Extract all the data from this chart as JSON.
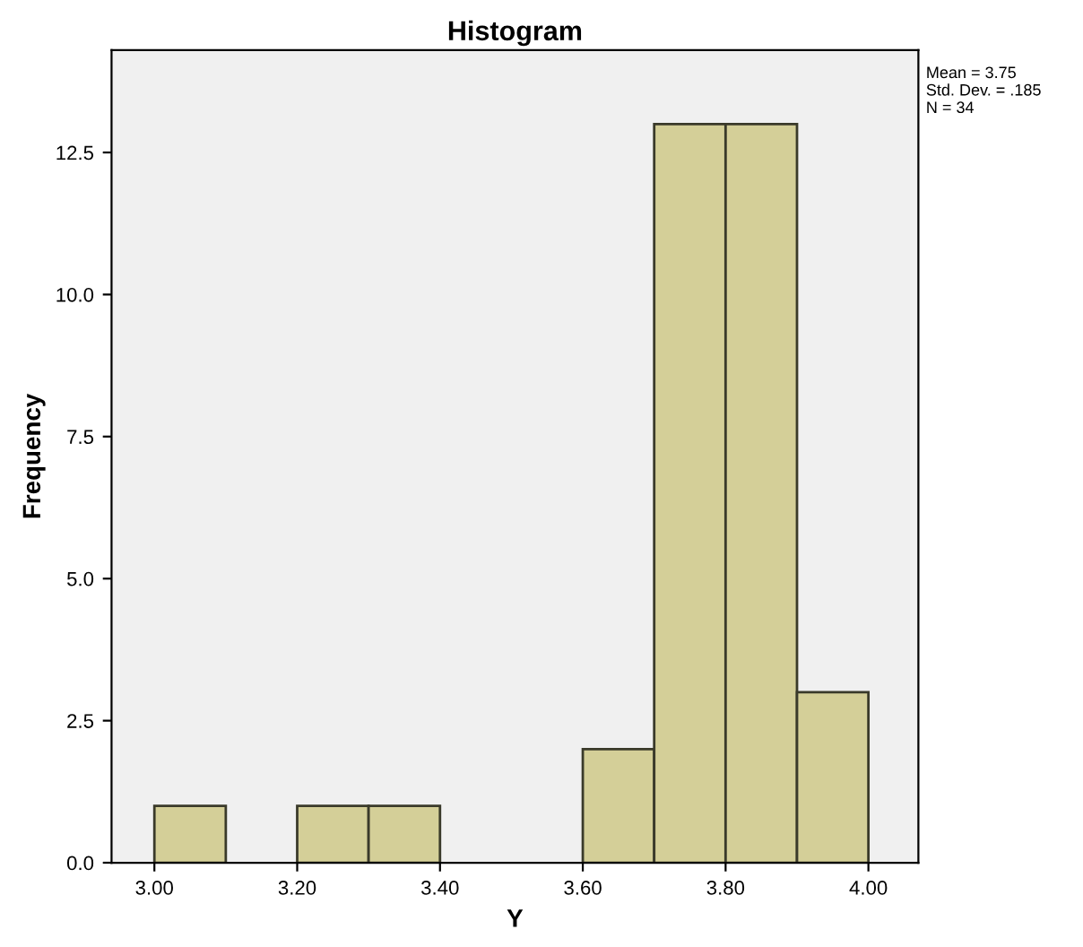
{
  "chart_data": {
    "type": "histogram",
    "title": "Histogram",
    "xlabel": "Y",
    "ylabel": "Frequency",
    "bins": [
      3.0,
      3.1,
      3.2,
      3.3,
      3.4,
      3.5,
      3.6,
      3.7,
      3.8,
      3.9,
      4.0
    ],
    "values": [
      1,
      0,
      1,
      1,
      0,
      0,
      2,
      13,
      13,
      3
    ],
    "color": "#d4cf98",
    "xlim": [
      2.94,
      4.07
    ],
    "ylim": [
      0,
      14.3
    ],
    "xticks": [
      {
        "value": 3.0,
        "label": "3.00"
      },
      {
        "value": 3.2,
        "label": "3.20"
      },
      {
        "value": 3.4,
        "label": "3.40"
      },
      {
        "value": 3.6,
        "label": "3.60"
      },
      {
        "value": 3.8,
        "label": "3.80"
      },
      {
        "value": 4.0,
        "label": "4.00"
      }
    ],
    "yticks": [
      {
        "value": 0,
        "label": "0.0"
      },
      2.5,
      {
        "value": 5,
        "label": "5.0"
      },
      7.5,
      {
        "value": 10,
        "label": "10.0"
      },
      12.5
    ],
    "annotations": [
      "Mean = 3.75\nStd. Dev. = .185\nN = 34"
    ],
    "grid": false
  }
}
